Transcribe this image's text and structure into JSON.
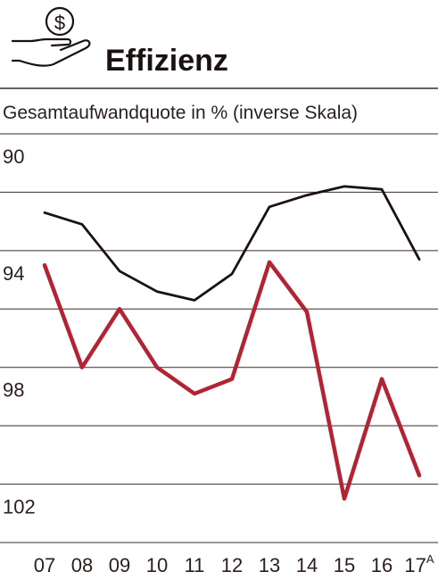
{
  "chart_data": {
    "type": "line",
    "title": "Effizienz",
    "subtitle": "Gesamtaufwandquote in % (inverse Skala)",
    "icon": "hand-holding-dollar-coin-icon",
    "x": [
      "07",
      "08",
      "09",
      "10",
      "11",
      "12",
      "13",
      "14",
      "15",
      "16",
      "17"
    ],
    "x_superscript": {
      "17": "A"
    },
    "ylim": [
      90,
      104
    ],
    "y_inverted": true,
    "yticks": [
      90,
      94,
      98,
      102
    ],
    "grid": true,
    "series": [
      {
        "values": [
          92.7,
          93.1,
          94.7,
          95.4,
          95.7,
          94.8,
          92.5,
          92.1,
          91.8,
          91.9,
          94.3
        ],
        "color": "#1a1210"
      },
      {
        "values": [
          94.5,
          98.0,
          96.0,
          98.0,
          98.9,
          98.4,
          94.4,
          96.1,
          102.5,
          98.4,
          101.7
        ],
        "color": "#b22433"
      }
    ],
    "colors": {
      "axis": "#3a2e2a",
      "grid": "#3a2e2a",
      "text": "#2a1f1c"
    }
  }
}
